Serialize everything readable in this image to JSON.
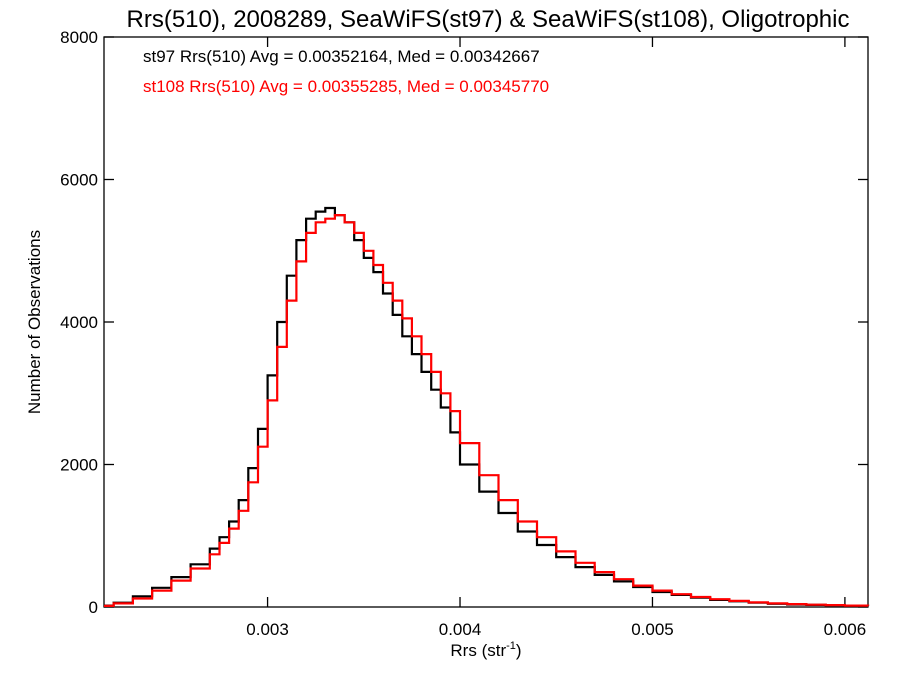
{
  "chart_data": {
    "type": "histogram",
    "title": "Rrs(510), 2008289, SeaWiFS(st97) & SeaWiFS(st108), Oligotrophic",
    "xlabel": "Rrs (str",
    "xlabel_sup": "-1",
    "xlabel_close": ")",
    "ylabel": "Number of Observations",
    "xlim": [
      0.00215,
      0.00612
    ],
    "ylim": [
      0,
      8000
    ],
    "x_ticks": [
      0.003,
      0.004,
      0.005,
      0.006
    ],
    "x_tick_labels": [
      "0.003",
      "0.004",
      "0.005",
      "0.006"
    ],
    "y_ticks": [
      0,
      2000,
      4000,
      6000,
      8000
    ],
    "y_tick_labels": [
      "0",
      "2000",
      "4000",
      "6000",
      "8000"
    ],
    "grid": false,
    "annotations": [
      "st97 Rrs(510) Avg = 0.00352164, Med = 0.00342667",
      "st108 Rrs(510) Avg = 0.00355285, Med = 0.00345770"
    ],
    "series": [
      {
        "color": "#000000",
        "x": [
          0.00215,
          0.0022,
          0.0023,
          0.0024,
          0.0025,
          0.0026,
          0.0027,
          0.00275,
          0.0028,
          0.00285,
          0.0029,
          0.00295,
          0.003,
          0.00305,
          0.0031,
          0.00315,
          0.0032,
          0.00325,
          0.0033,
          0.00335,
          0.0034,
          0.00345,
          0.0035,
          0.00355,
          0.0036,
          0.00365,
          0.0037,
          0.00375,
          0.0038,
          0.00385,
          0.0039,
          0.00395,
          0.004,
          0.0041,
          0.0042,
          0.0043,
          0.0044,
          0.0045,
          0.0046,
          0.0047,
          0.0048,
          0.0049,
          0.005,
          0.0051,
          0.0052,
          0.0053,
          0.0054,
          0.0055,
          0.0056,
          0.0057,
          0.0058,
          0.0059,
          0.006,
          0.00612
        ],
        "y": [
          20,
          60,
          150,
          270,
          420,
          600,
          820,
          980,
          1200,
          1500,
          1950,
          2500,
          3250,
          4000,
          4650,
          5150,
          5450,
          5550,
          5600,
          5500,
          5400,
          5150,
          4900,
          4700,
          4400,
          4100,
          3800,
          3550,
          3300,
          3050,
          2800,
          2450,
          2000,
          1620,
          1320,
          1060,
          870,
          700,
          560,
          450,
          360,
          280,
          210,
          170,
          130,
          100,
          80,
          60,
          45,
          35,
          30,
          25,
          20,
          15
        ]
      },
      {
        "color": "#ff0000",
        "x": [
          0.00215,
          0.0022,
          0.0023,
          0.0024,
          0.0025,
          0.0026,
          0.0027,
          0.00275,
          0.0028,
          0.00285,
          0.0029,
          0.00295,
          0.003,
          0.00305,
          0.0031,
          0.00315,
          0.0032,
          0.00325,
          0.0033,
          0.00335,
          0.0034,
          0.00345,
          0.0035,
          0.00355,
          0.0036,
          0.00365,
          0.0037,
          0.00375,
          0.0038,
          0.00385,
          0.0039,
          0.00395,
          0.004,
          0.0041,
          0.0042,
          0.0043,
          0.0044,
          0.0045,
          0.0046,
          0.0047,
          0.0048,
          0.0049,
          0.005,
          0.0051,
          0.0052,
          0.0053,
          0.0054,
          0.0055,
          0.0056,
          0.0057,
          0.0058,
          0.0059,
          0.006,
          0.00612
        ],
        "y": [
          15,
          50,
          120,
          230,
          370,
          540,
          740,
          900,
          1100,
          1350,
          1750,
          2250,
          2900,
          3650,
          4300,
          4850,
          5250,
          5400,
          5450,
          5500,
          5400,
          5250,
          5000,
          4800,
          4550,
          4300,
          4050,
          3800,
          3550,
          3300,
          3000,
          2750,
          2300,
          1850,
          1500,
          1200,
          980,
          780,
          620,
          490,
          390,
          300,
          230,
          180,
          140,
          110,
          85,
          65,
          50,
          40,
          32,
          26,
          20,
          15
        ]
      }
    ]
  }
}
